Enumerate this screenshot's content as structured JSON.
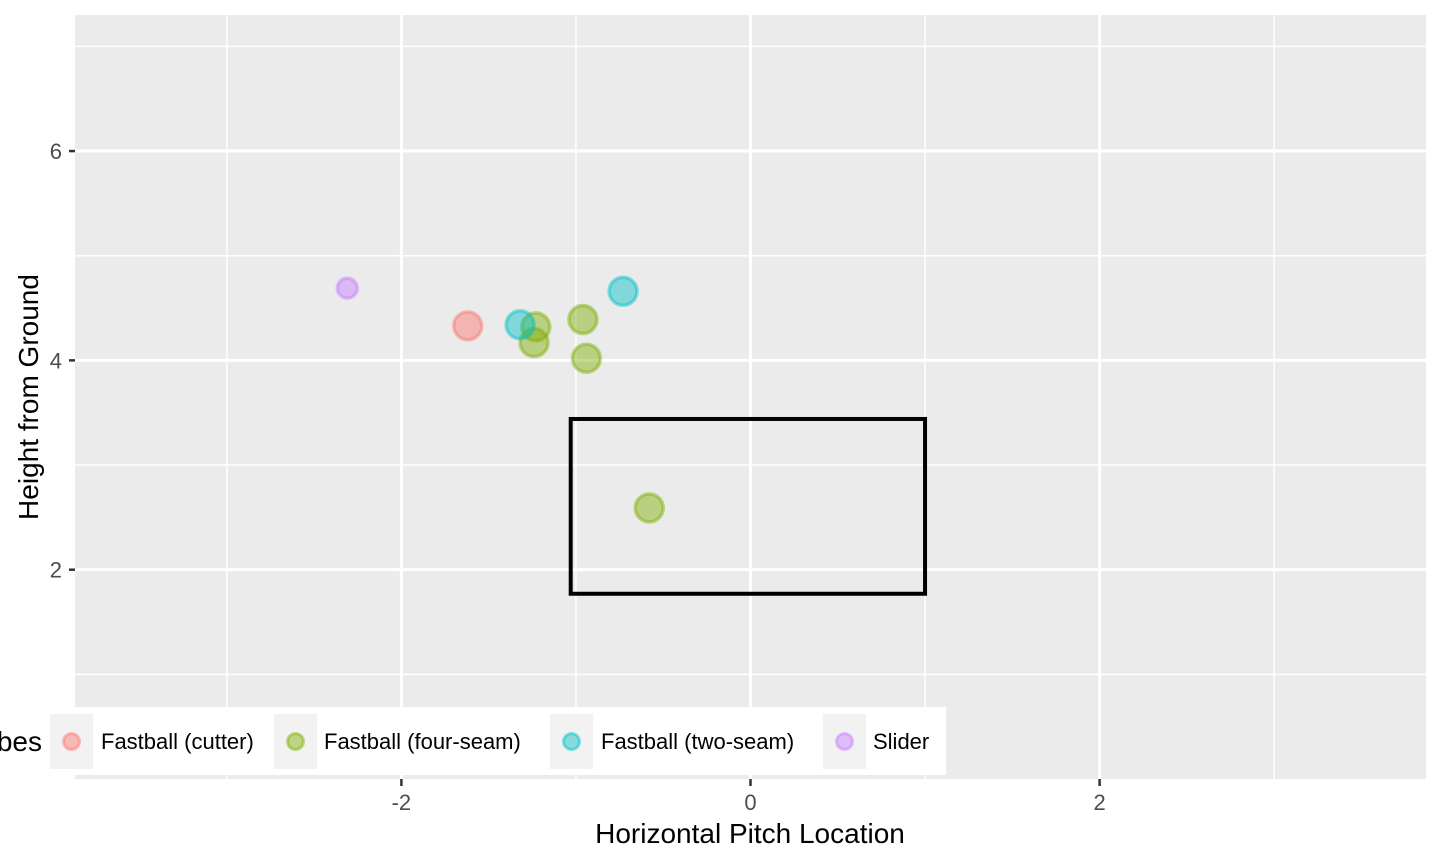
{
  "chart_data": {
    "type": "scatter",
    "title": "",
    "xlabel": "Horizontal Pitch Location",
    "ylabel": "Height from Ground",
    "xlim": [
      -3.87,
      3.87
    ],
    "ylim": [
      0.0,
      7.3
    ],
    "x_ticks": [
      -2,
      0,
      2
    ],
    "x_tick_labels": [
      "-2",
      "0",
      "2"
    ],
    "y_ticks": [
      2,
      4,
      6
    ],
    "y_tick_labels": [
      "2",
      "4",
      "6"
    ],
    "grid": true,
    "strike_zone": {
      "x": [
        -1.03,
        1.0
      ],
      "y": [
        1.77,
        3.44
      ]
    },
    "legend": {
      "title": "bes",
      "position": "bottom-left",
      "entries": [
        "Fastball (cutter)",
        "Fastball (four-seam)",
        "Fastball (two-seam)",
        "Slider"
      ]
    },
    "series": [
      {
        "name": "Fastball (cutter)",
        "color": "#F8766D",
        "points": [
          [
            -1.62,
            4.33
          ]
        ]
      },
      {
        "name": "Fastball (four-seam)",
        "color": "#7CAE00",
        "points": [
          [
            -1.23,
            4.32
          ],
          [
            -1.24,
            4.17
          ],
          [
            -0.96,
            4.39
          ],
          [
            -0.94,
            4.02
          ],
          [
            -0.58,
            2.59
          ]
        ]
      },
      {
        "name": "Fastball (two-seam)",
        "color": "#00BFC4",
        "points": [
          [
            -1.32,
            4.34
          ],
          [
            -0.73,
            4.66
          ]
        ]
      },
      {
        "name": "Slider",
        "color": "#C77CFF",
        "points": [
          [
            -2.31,
            4.69
          ]
        ]
      }
    ]
  }
}
